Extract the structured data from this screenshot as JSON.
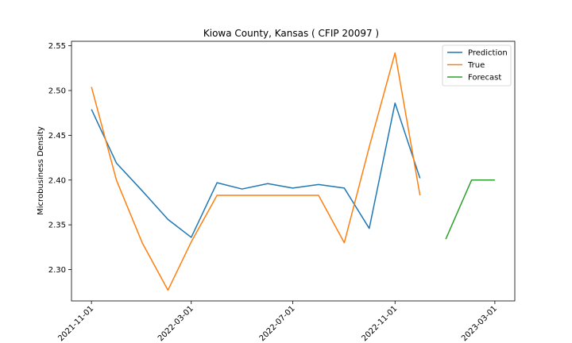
{
  "chart_data": {
    "type": "line",
    "title": "Kiowa County, Kansas ( CFIP 20097 )",
    "xlabel": "",
    "ylabel": "Microbusiness Density",
    "ylim": [
      2.265,
      2.555
    ],
    "yticks": [
      2.3,
      2.35,
      2.4,
      2.45,
      2.5,
      2.55
    ],
    "xlim": [
      "2021-10-08",
      "2023-03-25"
    ],
    "xticks": [
      "2021-11-01",
      "2022-03-01",
      "2022-07-01",
      "2022-11-01",
      "2023-03-01"
    ],
    "grid": false,
    "legend_position": "top-right",
    "series": [
      {
        "name": "Prediction",
        "color": "#1f77b4",
        "x": [
          "2021-11-01",
          "2021-12-01",
          "2022-01-01",
          "2022-02-01",
          "2022-03-01",
          "2022-04-01",
          "2022-05-01",
          "2022-06-01",
          "2022-07-01",
          "2022-08-01",
          "2022-09-01",
          "2022-10-01",
          "2022-11-01",
          "2022-12-01"
        ],
        "values": [
          2.479,
          2.419,
          2.388,
          2.356,
          2.336,
          2.397,
          2.39,
          2.396,
          2.391,
          2.395,
          2.391,
          2.346,
          2.486,
          2.402
        ]
      },
      {
        "name": "True",
        "color": "#ff7f0e",
        "x": [
          "2021-11-01",
          "2021-12-01",
          "2022-01-01",
          "2022-02-01",
          "2022-03-01",
          "2022-04-01",
          "2022-05-01",
          "2022-06-01",
          "2022-07-01",
          "2022-08-01",
          "2022-09-01",
          "2022-10-01",
          "2022-11-01",
          "2022-12-01"
        ],
        "values": [
          2.504,
          2.4,
          2.33,
          2.277,
          2.331,
          2.383,
          2.383,
          2.383,
          2.383,
          2.383,
          2.33,
          2.437,
          2.542,
          2.383
        ]
      },
      {
        "name": "Forecast",
        "color": "#2ca02c",
        "x": [
          "2023-01-01",
          "2023-02-01",
          "2023-03-01"
        ],
        "values": [
          2.334,
          2.4,
          2.4
        ]
      }
    ]
  }
}
